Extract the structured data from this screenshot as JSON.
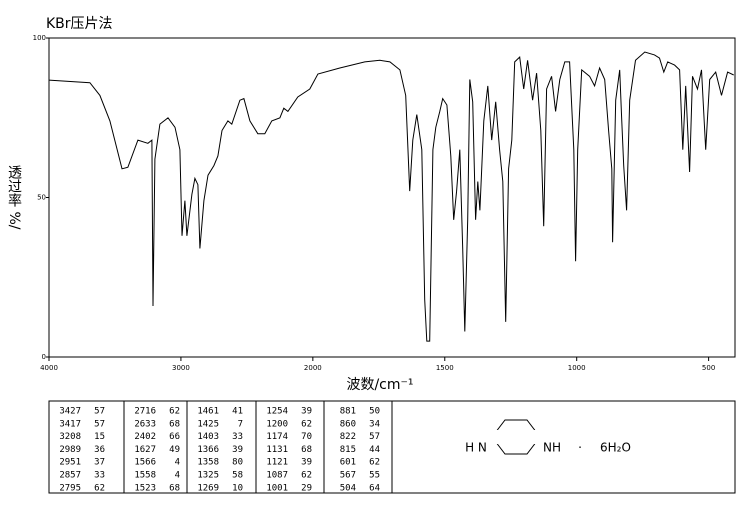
{
  "chart_data": {
    "type": "line",
    "title": "KBr压片法",
    "ylabel": "透过率 %/",
    "xlabel": "波数/cm⁻¹",
    "xlim": [
      4000,
      400
    ],
    "xticks": [
      4000,
      3000,
      2000,
      1500,
      1000,
      500
    ],
    "x_scale_break": 2000,
    "ylim": [
      0,
      100
    ],
    "yticks": [
      0,
      50,
      100
    ],
    "color": "#000000",
    "x": [
      4000,
      3690,
      3614,
      3538,
      3447,
      3402,
      3326,
      3250,
      3220,
      3212,
      3197,
      3159,
      3098,
      3045,
      3008,
      2992,
      2970,
      2955,
      2917,
      2894,
      2871,
      2856,
      2826,
      2795,
      2750,
      2720,
      2689,
      2644,
      2614,
      2553,
      2523,
      2477,
      2417,
      2364,
      2311,
      2250,
      2220,
      2189,
      2114,
      2023,
      1981,
      1898,
      1803,
      1746,
      1708,
      1670,
      1648,
      1633,
      1621,
      1606,
      1587,
      1576,
      1568,
      1557,
      1545,
      1534,
      1519,
      1508,
      1492,
      1477,
      1466,
      1455,
      1443,
      1432,
      1424,
      1413,
      1405,
      1394,
      1383,
      1375,
      1367,
      1352,
      1337,
      1322,
      1307,
      1292,
      1280,
      1269,
      1258,
      1246,
      1235,
      1216,
      1201,
      1186,
      1167,
      1152,
      1136,
      1125,
      1114,
      1095,
      1080,
      1064,
      1045,
      1027,
      1011,
      1004,
      996,
      981,
      951,
      932,
      913,
      894,
      879,
      867,
      864,
      852,
      837,
      830,
      822,
      811,
      799,
      777,
      742,
      705,
      686,
      670,
      655,
      629,
      610,
      598,
      587,
      572,
      561,
      542,
      527,
      511,
      496,
      473,
      451,
      428,
      405
    ],
    "values": [
      86.8,
      86,
      82,
      74,
      59,
      59.5,
      68,
      67,
      68,
      16,
      62,
      73,
      75,
      72,
      65,
      38,
      49,
      38,
      51,
      56,
      54,
      34,
      49,
      57,
      60,
      63,
      71,
      74,
      73,
      80.5,
      81,
      74,
      70,
      70,
      74,
      75,
      78,
      77,
      81.5,
      84,
      88.7,
      90.6,
      92.5,
      93,
      92.5,
      90,
      82,
      52,
      68,
      76,
      65,
      18,
      5,
      5,
      65,
      72,
      77,
      81,
      79,
      63,
      43,
      52,
      65,
      34,
      8,
      43,
      87,
      80,
      43,
      55,
      46,
      74,
      85,
      68,
      80,
      65,
      55,
      11,
      59,
      68,
      92.5,
      94,
      84,
      93,
      80.5,
      89,
      71,
      41,
      84,
      88,
      77,
      87,
      92.5,
      92.5,
      65,
      30,
      65,
      90,
      88,
      85,
      90.6,
      87,
      71,
      59,
      36,
      80.5,
      90,
      76,
      60,
      46,
      80.5,
      93,
      95.6,
      94.7,
      93.7,
      89.3,
      92.5,
      91.5,
      90,
      65,
      85,
      58,
      88,
      84,
      90,
      65,
      87,
      89.3,
      82,
      89.3,
      88.4
    ]
  },
  "peak_table": [
    [
      [
        3427,
        57
      ],
      [
        3417,
        57
      ],
      [
        3208,
        15
      ],
      [
        2989,
        36
      ],
      [
        2951,
        37
      ],
      [
        2857,
        33
      ],
      [
        2795,
        62
      ]
    ],
    [
      [
        2716,
        62
      ],
      [
        2633,
        68
      ],
      [
        2402,
        66
      ],
      [
        1627,
        49
      ],
      [
        1566,
        4
      ],
      [
        1558,
        4
      ],
      [
        1523,
        68
      ]
    ],
    [
      [
        1461,
        41
      ],
      [
        1425,
        7
      ],
      [
        1403,
        33
      ],
      [
        1366,
        39
      ],
      [
        1358,
        80
      ],
      [
        1325,
        58
      ],
      [
        1269,
        10
      ]
    ],
    [
      [
        1254,
        39
      ],
      [
        1200,
        62
      ],
      [
        1174,
        70
      ],
      [
        1131,
        68
      ],
      [
        1121,
        39
      ],
      [
        1087,
        62
      ],
      [
        1001,
        29
      ]
    ],
    [
      [
        881,
        50
      ],
      [
        860,
        34
      ],
      [
        822,
        57
      ],
      [
        815,
        44
      ],
      [
        601,
        62
      ],
      [
        567,
        55
      ],
      [
        504,
        64
      ]
    ]
  ],
  "structure": {
    "left": "H N",
    "right": "NH",
    "dot": "·",
    "hydrate": "6H₂O"
  }
}
